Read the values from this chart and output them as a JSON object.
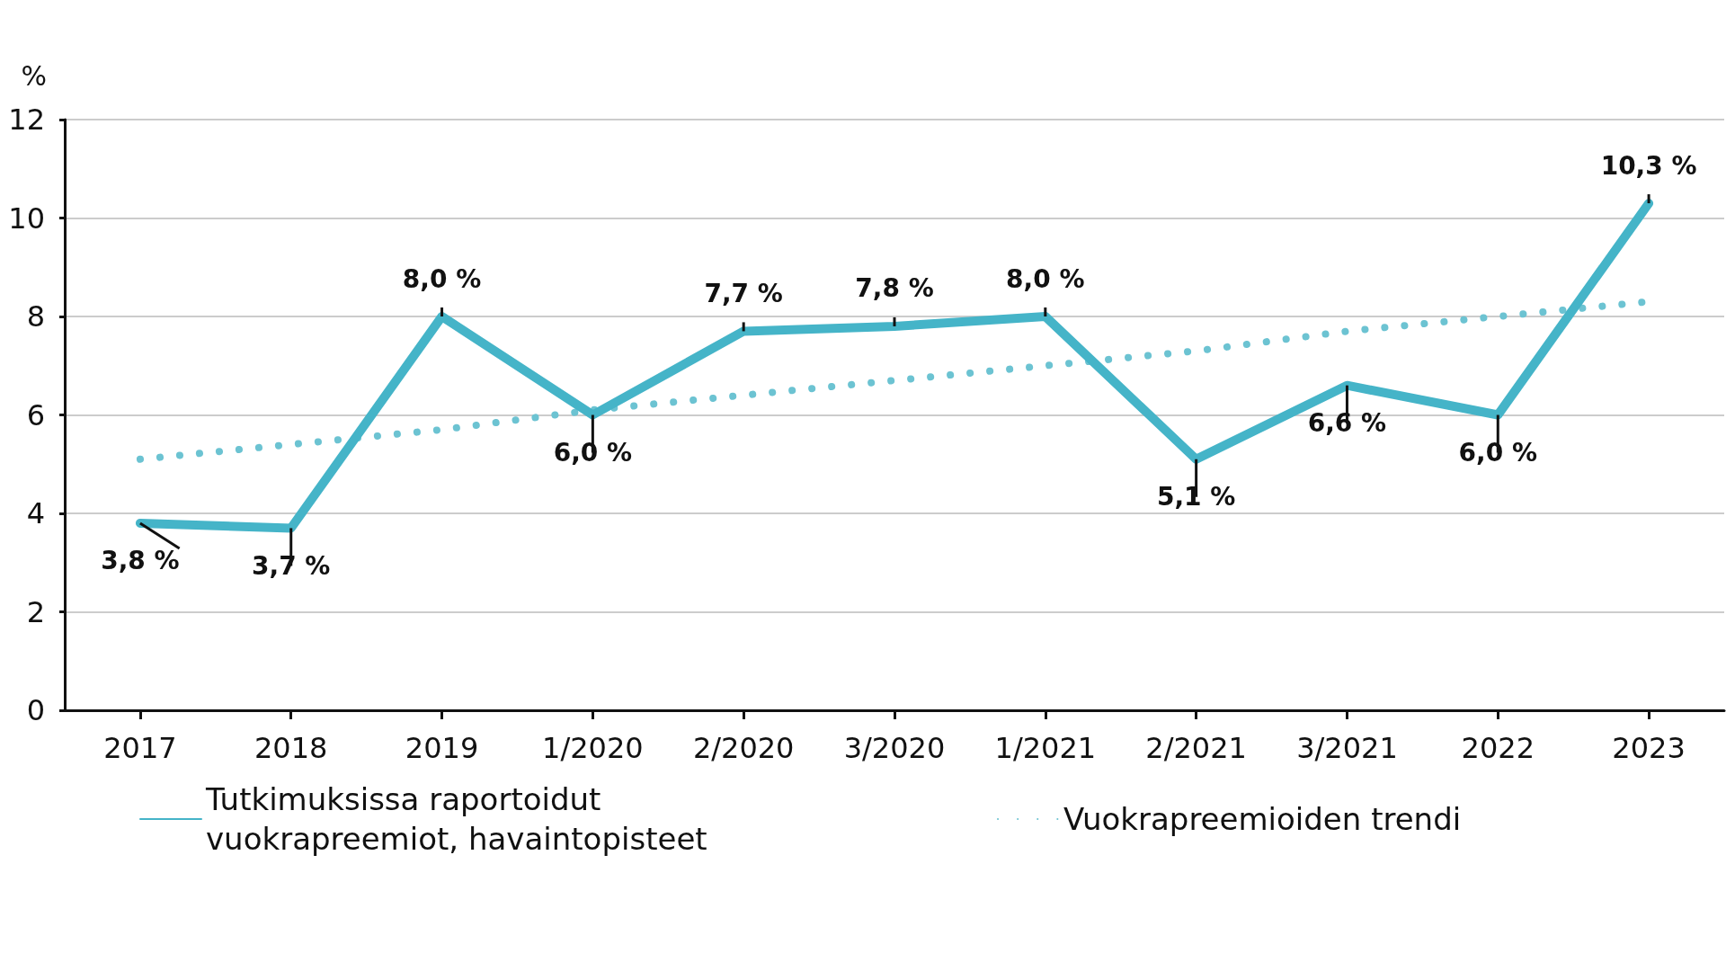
{
  "chart_data": {
    "type": "line",
    "ylabel": "%",
    "categories": [
      "2017",
      "2018",
      "2019",
      "1/2020",
      "2/2020",
      "3/2020",
      "1/2021",
      "2/2021",
      "3/2021",
      "2022",
      "2023"
    ],
    "series": [
      {
        "name": "Tutkimuksissa raportoidut vuokrapreemiot, havaintopisteet",
        "color": "#45b4c8",
        "values": [
          3.8,
          3.7,
          8.0,
          6.0,
          7.7,
          7.8,
          8.0,
          5.1,
          6.6,
          6.0,
          10.3
        ],
        "value_labels": [
          "3,8 %",
          "3,7 %",
          "8,0 %",
          "6,0 %",
          "7,7 %",
          "7,8 %",
          "8,0 %",
          "5,1 %",
          "6,6 %",
          "6,0 %",
          "10,3 %"
        ],
        "line_style": "solid"
      },
      {
        "name": "Vuokrapreemioiden trendi",
        "color": "#6cc3d2",
        "values": [
          5.1,
          5.4,
          5.7,
          6.1,
          6.4,
          6.7,
          7.0,
          7.3,
          7.7,
          8.0,
          8.3
        ],
        "line_style": "dotted"
      }
    ],
    "ylim": [
      0,
      12
    ],
    "yticks": [
      0,
      2,
      4,
      6,
      8,
      10,
      12
    ],
    "grid": "y",
    "legend": "bottom",
    "marker": "none"
  }
}
